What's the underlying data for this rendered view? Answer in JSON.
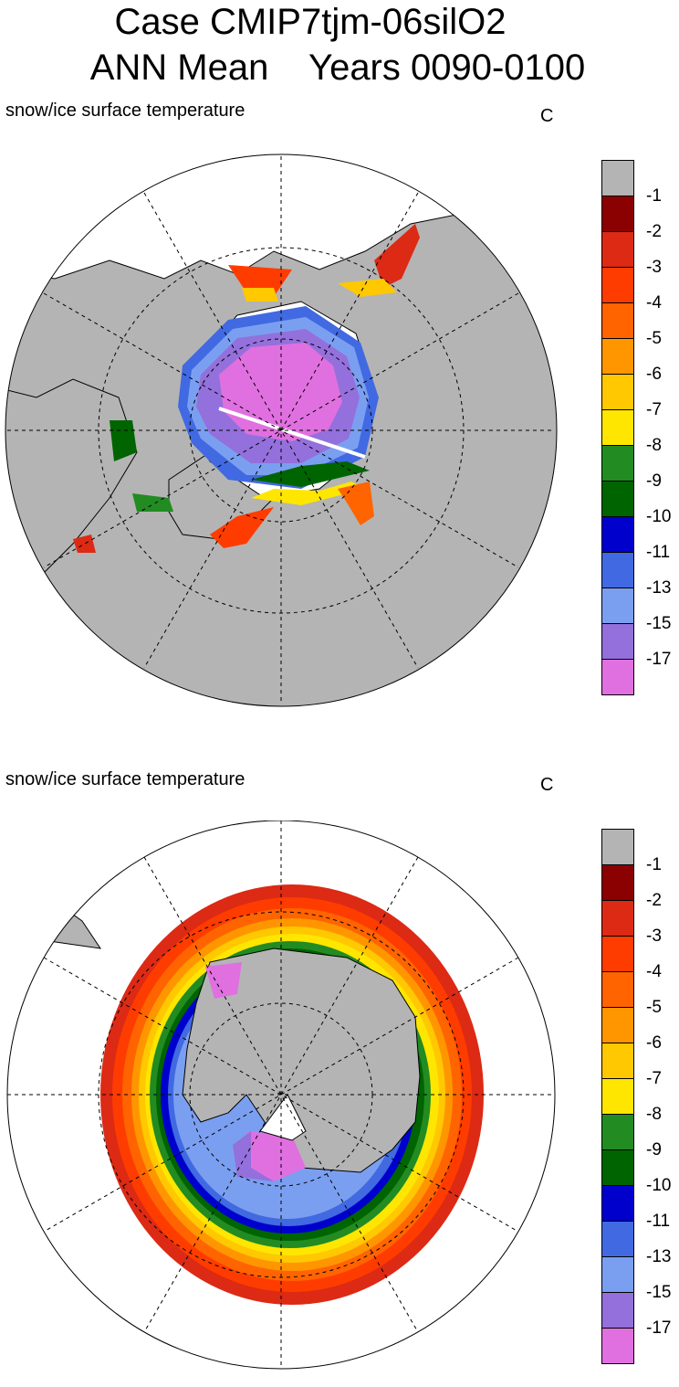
{
  "title_line1": "Case CMIP7tjm-06silO2",
  "title_line2": "ANN Mean    Years 0090-0100",
  "colors": {
    "land": "#b4b4b4",
    "levels": [
      "#b4b4b4",
      "#8b0000",
      "#dc2a14",
      "#ff3c00",
      "#ff6400",
      "#ff9600",
      "#ffc800",
      "#ffe600",
      "#228b22",
      "#006400",
      "#0000cd",
      "#4169e1",
      "#7b9ff0",
      "#9370db",
      "#e070e0"
    ]
  },
  "colorbar_labels": [
    "-1",
    "-2",
    "-3",
    "-4",
    "-5",
    "-6",
    "-7",
    "-8",
    "-9",
    "-10",
    "-11",
    "-13",
    "-15",
    "-17"
  ],
  "panels": [
    {
      "id": "north",
      "label": "snow/ice surface temperature",
      "units": "C",
      "hemisphere": "NH"
    },
    {
      "id": "south",
      "label": "snow/ice surface temperature",
      "units": "C",
      "hemisphere": "SH"
    }
  ]
}
